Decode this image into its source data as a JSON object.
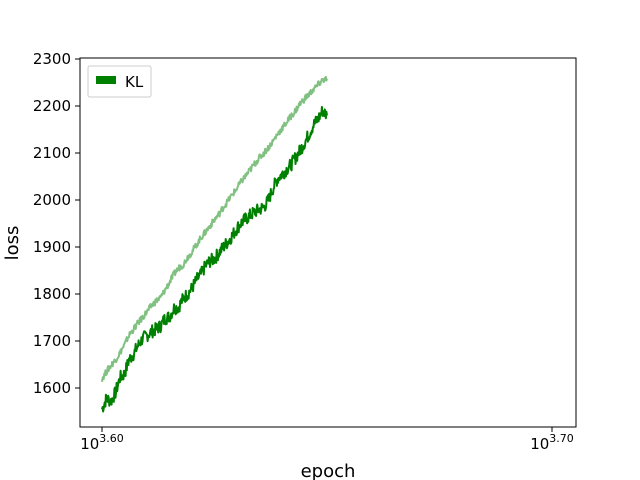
{
  "chart_data": {
    "type": "line",
    "title": "",
    "xlabel": "epoch",
    "ylabel": "loss",
    "xscale": "log",
    "xlim_exponent": [
      3.6,
      3.7
    ],
    "xticks": [
      {
        "base": "10",
        "exp": "3.60"
      },
      {
        "base": "10",
        "exp": "3.70"
      }
    ],
    "ylim": [
      1520,
      2305
    ],
    "yticks": [
      1600,
      1700,
      1800,
      1900,
      2000,
      2100,
      2200,
      2300
    ],
    "grid": false,
    "legend": {
      "position": "top-left",
      "entries": [
        "KL"
      ]
    },
    "series": [
      {
        "name": "KL",
        "role": "train",
        "color": "#008000",
        "style": "solid",
        "points": [
          [
            3.6,
            1555
          ],
          [
            3.601,
            1578
          ],
          [
            3.602,
            1572
          ],
          [
            3.603,
            1590
          ],
          [
            3.604,
            1622
          ],
          [
            3.605,
            1630
          ],
          [
            3.606,
            1660
          ],
          [
            3.607,
            1672
          ],
          [
            3.608,
            1690
          ],
          [
            3.609,
            1705
          ],
          [
            3.61,
            1712
          ],
          [
            3.611,
            1720
          ],
          [
            3.612,
            1725
          ],
          [
            3.613,
            1732
          ],
          [
            3.614,
            1748
          ],
          [
            3.615,
            1752
          ],
          [
            3.616,
            1770
          ],
          [
            3.617,
            1772
          ],
          [
            3.618,
            1790
          ],
          [
            3.619,
            1800
          ],
          [
            3.62,
            1812
          ],
          [
            3.621,
            1830
          ],
          [
            3.622,
            1842
          ],
          [
            3.623,
            1860
          ],
          [
            3.624,
            1870
          ],
          [
            3.625,
            1875
          ],
          [
            3.626,
            1888
          ],
          [
            3.627,
            1900
          ],
          [
            3.628,
            1912
          ],
          [
            3.629,
            1925
          ],
          [
            3.63,
            1940
          ],
          [
            3.631,
            1952
          ],
          [
            3.632,
            1960
          ],
          [
            3.633,
            1968
          ],
          [
            3.634,
            1975
          ],
          [
            3.635,
            1980
          ],
          [
            3.636,
            1985
          ],
          [
            3.637,
            2000
          ],
          [
            3.638,
            2025
          ],
          [
            3.639,
            2045
          ],
          [
            3.64,
            2055
          ],
          [
            3.641,
            2065
          ],
          [
            3.642,
            2075
          ],
          [
            3.643,
            2090
          ],
          [
            3.644,
            2105
          ],
          [
            3.645,
            2122
          ],
          [
            3.646,
            2140
          ],
          [
            3.647,
            2160
          ],
          [
            3.648,
            2172
          ],
          [
            3.649,
            2190
          ],
          [
            3.65,
            2180
          ]
        ]
      },
      {
        "name": "",
        "role": "validation",
        "color": "#80c080",
        "style": "solid",
        "points": [
          [
            3.6,
            1620
          ],
          [
            3.601,
            1635
          ],
          [
            3.602,
            1648
          ],
          [
            3.603,
            1660
          ],
          [
            3.604,
            1675
          ],
          [
            3.605,
            1692
          ],
          [
            3.606,
            1712
          ],
          [
            3.607,
            1725
          ],
          [
            3.608,
            1738
          ],
          [
            3.609,
            1750
          ],
          [
            3.61,
            1762
          ],
          [
            3.611,
            1775
          ],
          [
            3.612,
            1785
          ],
          [
            3.613,
            1792
          ],
          [
            3.614,
            1808
          ],
          [
            3.615,
            1825
          ],
          [
            3.616,
            1842
          ],
          [
            3.617,
            1855
          ],
          [
            3.618,
            1862
          ],
          [
            3.619,
            1878
          ],
          [
            3.62,
            1890
          ],
          [
            3.621,
            1905
          ],
          [
            3.622,
            1920
          ],
          [
            3.623,
            1932
          ],
          [
            3.624,
            1945
          ],
          [
            3.625,
            1958
          ],
          [
            3.626,
            1970
          ],
          [
            3.627,
            1985
          ],
          [
            3.628,
            1998
          ],
          [
            3.629,
            2012
          ],
          [
            3.63,
            2025
          ],
          [
            3.631,
            2040
          ],
          [
            3.632,
            2052
          ],
          [
            3.633,
            2065
          ],
          [
            3.634,
            2078
          ],
          [
            3.635,
            2090
          ],
          [
            3.636,
            2100
          ],
          [
            3.637,
            2112
          ],
          [
            3.638,
            2125
          ],
          [
            3.639,
            2140
          ],
          [
            3.64,
            2152
          ],
          [
            3.641,
            2165
          ],
          [
            3.642,
            2178
          ],
          [
            3.643,
            2190
          ],
          [
            3.644,
            2205
          ],
          [
            3.645,
            2215
          ],
          [
            3.646,
            2225
          ],
          [
            3.647,
            2235
          ],
          [
            3.648,
            2245
          ],
          [
            3.649,
            2255
          ],
          [
            3.65,
            2258
          ]
        ]
      }
    ]
  }
}
